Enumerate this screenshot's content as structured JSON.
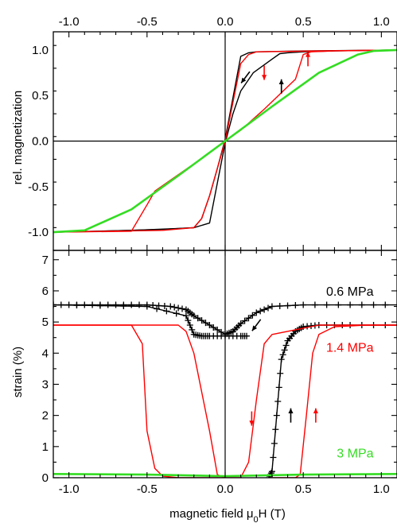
{
  "chart_data": [
    {
      "type": "line",
      "panel": "top",
      "ylabel": "rel. magnetization",
      "xlim": [
        -1.1,
        1.1
      ],
      "ylim": [
        -1.2,
        1.2
      ],
      "x_ticks": [
        "-1.0",
        "-0.5",
        "0.0",
        "0.5",
        "1.0"
      ],
      "y_ticks": [
        "-1.0",
        "-0.5",
        "0.0",
        "0.5",
        "1.0"
      ],
      "series": [
        {
          "color": "#000000",
          "segments": [
            {
              "x": [
                -1.1,
                -0.6,
                -0.3,
                -0.2,
                -0.1,
                0.0,
                0.05,
                0.1,
                0.18,
                0.3,
                0.35,
                0.4,
                0.5,
                0.7,
                1.1
              ],
              "y": [
                -1.0,
                -0.98,
                -0.96,
                -0.95,
                -0.9,
                -0.02,
                0.3,
                0.55,
                0.75,
                0.9,
                0.96,
                0.97,
                0.98,
                0.99,
                1.0
              ]
            },
            {
              "x": [
                1.1,
                0.5,
                0.2,
                0.15,
                0.1,
                0.0,
                -0.05,
                -0.1,
                -0.15,
                -0.2,
                -0.4,
                -0.8,
                -1.1
              ],
              "y": [
                1.0,
                0.99,
                0.98,
                0.97,
                0.93,
                0.02,
                -0.3,
                -0.6,
                -0.85,
                -0.95,
                -0.97,
                -0.99,
                -1.0
              ]
            }
          ]
        },
        {
          "color": "#ff0000",
          "segments": [
            {
              "x": [
                -1.1,
                -0.6,
                -0.5,
                -0.45,
                -0.2,
                0.0,
                0.1,
                0.25,
                0.45,
                0.5,
                0.55,
                0.7,
                1.1
              ],
              "y": [
                -1.0,
                -0.99,
                -0.7,
                -0.55,
                -0.25,
                0.0,
                0.12,
                0.35,
                0.68,
                0.95,
                0.98,
                0.99,
                1.0
              ]
            },
            {
              "x": [
                1.1,
                0.6,
                0.2,
                0.15,
                0.1,
                0.0,
                -0.1,
                -0.15,
                -0.2,
                -0.4,
                -1.1
              ],
              "y": [
                1.0,
                0.99,
                0.98,
                0.95,
                0.85,
                0.0,
                -0.6,
                -0.85,
                -0.95,
                -0.98,
                -1.0
              ]
            }
          ]
        },
        {
          "color": "#33dd22",
          "segments": [
            {
              "x": [
                -1.1,
                -0.9,
                -0.6,
                -0.3,
                0.0,
                0.3,
                0.6,
                0.85,
                0.95,
                1.1
              ],
              "y": [
                -1.0,
                -0.98,
                -0.75,
                -0.38,
                0.0,
                0.38,
                0.75,
                0.95,
                0.99,
                1.0
              ]
            }
          ]
        }
      ],
      "arrows": [
        {
          "color": "#000000",
          "x": 0.13,
          "y": 0.7,
          "direction": "down-left"
        },
        {
          "color": "#ff0000",
          "x": 0.25,
          "y": 0.75,
          "direction": "down"
        },
        {
          "color": "#000000",
          "x": 0.36,
          "y": 0.6,
          "direction": "up"
        },
        {
          "color": "#ff0000",
          "x": 0.53,
          "y": 0.9,
          "direction": "up"
        }
      ]
    },
    {
      "type": "line",
      "panel": "bottom",
      "xlabel": "magnetic field μ0H  (T)",
      "ylabel": "strain (%)",
      "xlim": [
        -1.1,
        1.1
      ],
      "ylim": [
        0,
        7.3
      ],
      "x_ticks": [
        "-1.0",
        "-0.5",
        "0.0",
        "0.5",
        "1.0"
      ],
      "y_ticks": [
        "0",
        "1",
        "2",
        "3",
        "4",
        "5",
        "6",
        "7"
      ],
      "series": [
        {
          "name": "0.6 MPa",
          "color": "#000000",
          "markers": true,
          "segments": [
            {
              "x": [
                -1.1,
                -0.9,
                -0.7,
                -0.5,
                -0.35,
                -0.25,
                -0.2,
                -0.1,
                0.0,
                0.05,
                0.1,
                0.2,
                0.3,
                0.5,
                0.8,
                1.1
              ],
              "y": [
                5.55,
                5.55,
                5.55,
                5.55,
                5.5,
                5.4,
                5.2,
                4.9,
                4.6,
                4.7,
                4.95,
                5.3,
                5.5,
                5.55,
                5.55,
                5.55
              ]
            },
            {
              "x": [
                -1.1,
                -0.5,
                -0.25,
                -0.2,
                -0.15,
                -0.1,
                0.0,
                0.1,
                0.15
              ],
              "y": [
                5.55,
                5.5,
                5.2,
                4.6,
                4.55,
                4.55,
                4.55,
                4.55,
                4.55
              ]
            },
            {
              "x": [
                0.28,
                0.3,
                0.33,
                0.36,
                0.4,
                0.45,
                0.5,
                0.6,
                0.8,
                1.1
              ],
              "y": [
                0.0,
                0.2,
                2.0,
                3.8,
                4.4,
                4.7,
                4.85,
                4.9,
                4.9,
                4.9
              ]
            }
          ]
        },
        {
          "name": "1.4 MPa",
          "color": "#ff0000",
          "segments": [
            {
              "x": [
                -1.1,
                -0.6,
                -0.53,
                -0.5,
                -0.45,
                -0.4,
                -0.3,
                -0.1,
                0.0
              ],
              "y": [
                4.9,
                4.9,
                4.3,
                1.5,
                0.3,
                0.05,
                0.0,
                0.0,
                0.0
              ]
            },
            {
              "x": [
                -1.1,
                -0.3,
                -0.25,
                -0.2,
                -0.1,
                -0.05,
                0.0,
                0.1,
                0.15,
                0.2,
                0.25,
                0.3,
                0.6,
                1.1
              ],
              "y": [
                4.9,
                4.9,
                4.7,
                4.0,
                1.5,
                0.1,
                0.0,
                0.0,
                0.5,
                2.5,
                4.3,
                4.6,
                4.9,
                4.9
              ]
            },
            {
              "x": [
                0.3,
                0.45,
                0.48,
                0.52,
                0.56,
                0.6,
                0.7,
                0.9,
                1.1
              ],
              "y": [
                0.0,
                0.0,
                0.1,
                2.0,
                4.0,
                4.6,
                4.85,
                4.9,
                4.9
              ]
            }
          ]
        },
        {
          "name": "3 MPa",
          "color": "#33dd22",
          "segments": [
            {
              "x": [
                -1.1,
                -0.5,
                0.0,
                0.5,
                1.1
              ],
              "y": [
                0.12,
                0.1,
                0.05,
                0.1,
                0.12
              ]
            }
          ]
        }
      ],
      "annotations": [
        {
          "text": "0.6 MPa",
          "color": "#000000",
          "x": 0.95,
          "y": 5.85
        },
        {
          "text": "1.4 MPa",
          "color": "#ff0000",
          "x": 0.95,
          "y": 4.05
        },
        {
          "text": "3 MPa",
          "color": "#33dd22",
          "x": 0.95,
          "y": 0.65
        }
      ],
      "arrows": [
        {
          "color": "#000000",
          "x": 0.2,
          "y": 4.9,
          "direction": "down-left"
        },
        {
          "color": "#ff0000",
          "x": 0.17,
          "y": 1.9,
          "direction": "down"
        },
        {
          "color": "#000000",
          "x": 0.42,
          "y": 2.0,
          "direction": "up"
        },
        {
          "color": "#ff0000",
          "x": 0.58,
          "y": 2.0,
          "direction": "up"
        }
      ]
    }
  ]
}
